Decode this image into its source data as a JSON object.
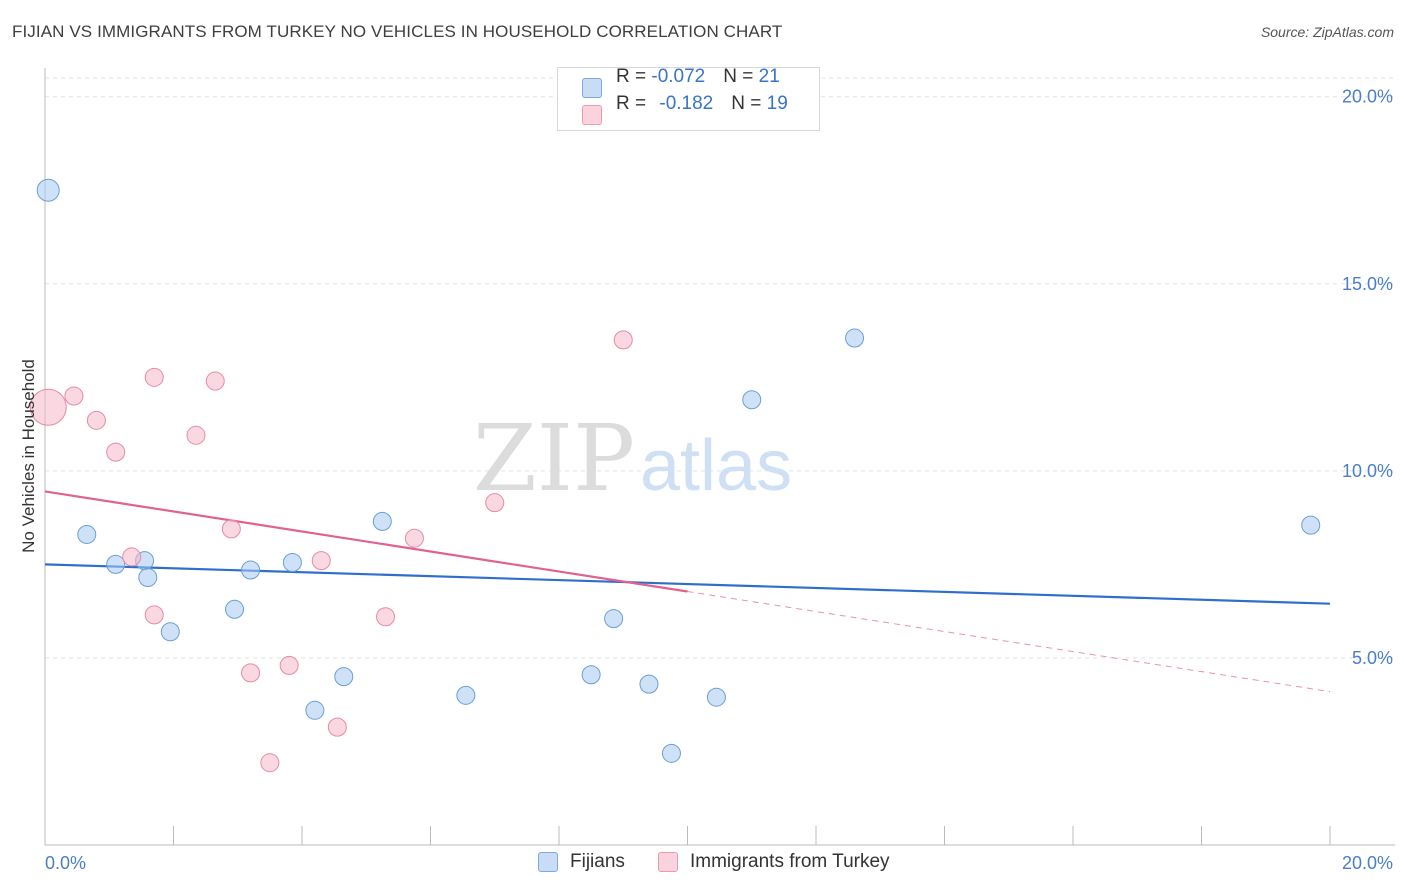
{
  "header": {
    "title": "FIJIAN VS IMMIGRANTS FROM TURKEY NO VEHICLES IN HOUSEHOLD CORRELATION CHART",
    "source": "Source: ZipAtlas.com"
  },
  "watermark": {
    "zip": "ZIP",
    "atlas": "atlas"
  },
  "stats": [
    {
      "r_label": "R = ",
      "r_value": "-0.072",
      "n_label": "N = ",
      "n_value": "21",
      "color": "#a8c8f0"
    },
    {
      "r_label": "R = ",
      "r_value": "-0.182",
      "n_label": "N = ",
      "n_value": "19",
      "color": "#f5b8cb"
    }
  ],
  "legend": [
    {
      "label": "Fijians",
      "color": "#a8c8f0"
    },
    {
      "label": "Immigrants from Turkey",
      "color": "#f5b8cb"
    }
  ],
  "chart_data": {
    "type": "scatter",
    "title": "FIJIAN VS IMMIGRANTS FROM TURKEY NO VEHICLES IN HOUSEHOLD CORRELATION CHART",
    "xlabel": "",
    "ylabel": "No Vehicles in Household",
    "xlim": [
      0,
      20
    ],
    "ylim": [
      0,
      20.5
    ],
    "x_tick_labels": [
      "0.0%",
      "20.0%"
    ],
    "y_ticks": [
      5,
      10,
      15,
      20
    ],
    "y_tick_labels": [
      "5.0%",
      "10.0%",
      "15.0%",
      "20.0%"
    ],
    "grid": true,
    "legend_position": "bottom",
    "series": [
      {
        "name": "Fijians",
        "color": "#a8c8f0",
        "stroke": "#6a9fd8",
        "trend_color": "#2f6fcc",
        "trend": {
          "x0": 0,
          "y0": 7.5,
          "x1": 20,
          "y1": 6.45,
          "solid_to": 20
        },
        "points": [
          [
            0.05,
            17.5,
            11
          ],
          [
            0.65,
            8.3,
            9
          ],
          [
            1.1,
            7.5,
            9
          ],
          [
            1.55,
            7.6,
            9
          ],
          [
            1.6,
            7.15,
            9
          ],
          [
            1.95,
            5.7,
            9
          ],
          [
            2.95,
            6.3,
            9
          ],
          [
            3.2,
            7.35,
            9
          ],
          [
            3.85,
            7.55,
            9
          ],
          [
            4.2,
            3.6,
            9
          ],
          [
            4.65,
            4.5,
            9
          ],
          [
            5.25,
            8.65,
            9
          ],
          [
            6.55,
            4.0,
            9
          ],
          [
            8.5,
            4.55,
            9
          ],
          [
            8.85,
            6.05,
            9
          ],
          [
            9.4,
            4.3,
            9
          ],
          [
            9.75,
            2.45,
            9
          ],
          [
            10.45,
            3.95,
            9
          ],
          [
            11.0,
            11.9,
            9
          ],
          [
            12.6,
            13.55,
            9
          ],
          [
            19.7,
            8.55,
            9
          ]
        ]
      },
      {
        "name": "Immigrants from Turkey",
        "color": "#f5b8cb",
        "stroke": "#e88aa6",
        "trend_color": "#e0628e",
        "trend": {
          "x0": 0,
          "y0": 9.45,
          "x1": 20,
          "y1": 4.1,
          "solid_to": 10.0
        },
        "points": [
          [
            0.05,
            11.7,
            18
          ],
          [
            0.45,
            12.0,
            9
          ],
          [
            0.8,
            11.35,
            9
          ],
          [
            1.1,
            10.5,
            9
          ],
          [
            1.35,
            7.7,
            9
          ],
          [
            1.7,
            6.15,
            9
          ],
          [
            1.7,
            12.5,
            9
          ],
          [
            2.35,
            10.95,
            9
          ],
          [
            2.65,
            12.4,
            9
          ],
          [
            2.9,
            8.45,
            9
          ],
          [
            3.2,
            4.6,
            9
          ],
          [
            3.5,
            2.2,
            9
          ],
          [
            3.8,
            4.8,
            9
          ],
          [
            4.3,
            7.6,
            9
          ],
          [
            4.55,
            3.15,
            9
          ],
          [
            5.3,
            6.1,
            9
          ],
          [
            5.75,
            8.2,
            9
          ],
          [
            7.0,
            9.15,
            9
          ],
          [
            9.0,
            13.5,
            9
          ]
        ]
      }
    ]
  }
}
